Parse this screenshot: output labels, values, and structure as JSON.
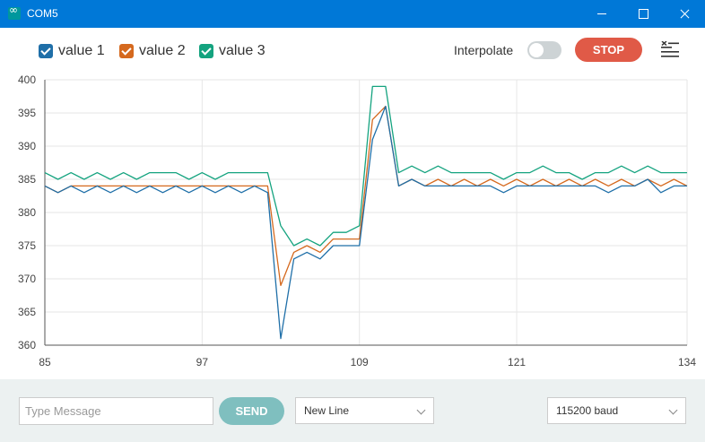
{
  "window": {
    "title": "COM5"
  },
  "legend": {
    "items": [
      {
        "label": "value 1",
        "color": "#1f6fa8"
      },
      {
        "label": "value 2",
        "color": "#d5691e"
      },
      {
        "label": "value 3",
        "color": "#14a37f"
      }
    ]
  },
  "controls": {
    "interpolate_label": "Interpolate",
    "interpolate_on": false,
    "stop_label": "STOP"
  },
  "bottom": {
    "message_placeholder": "Type Message",
    "send_label": "SEND",
    "line_ending": "New Line",
    "baud": "115200 baud"
  },
  "chart_data": {
    "type": "line",
    "xlim": [
      85,
      134
    ],
    "ylim": [
      360,
      400
    ],
    "x_ticks": [
      85,
      97,
      109,
      121,
      134
    ],
    "y_ticks": [
      360,
      365,
      370,
      375,
      380,
      385,
      390,
      395,
      400
    ],
    "grid": true,
    "x": [
      85,
      86,
      87,
      88,
      89,
      90,
      91,
      92,
      93,
      94,
      95,
      96,
      97,
      98,
      99,
      100,
      101,
      102,
      103,
      104,
      105,
      106,
      107,
      108,
      109,
      110,
      111,
      112,
      113,
      114,
      115,
      116,
      117,
      118,
      119,
      120,
      121,
      122,
      123,
      124,
      125,
      126,
      127,
      128,
      129,
      130,
      131,
      132,
      133,
      134
    ],
    "series": [
      {
        "name": "value 1",
        "color": "#1f6fa8",
        "values": [
          384,
          383,
          384,
          383,
          384,
          383,
          384,
          383,
          384,
          383,
          384,
          383,
          384,
          383,
          384,
          383,
          384,
          383,
          361,
          373,
          374,
          373,
          375,
          375,
          375,
          391,
          396,
          384,
          385,
          384,
          384,
          384,
          384,
          384,
          384,
          383,
          384,
          384,
          384,
          384,
          384,
          384,
          384,
          383,
          384,
          384,
          385,
          383,
          384,
          384
        ]
      },
      {
        "name": "value 2",
        "color": "#d5691e",
        "values": [
          384,
          383,
          384,
          384,
          384,
          384,
          384,
          384,
          384,
          384,
          384,
          384,
          384,
          384,
          384,
          384,
          384,
          384,
          369,
          374,
          375,
          374,
          376,
          376,
          376,
          394,
          396,
          384,
          385,
          384,
          385,
          384,
          385,
          384,
          385,
          384,
          385,
          384,
          385,
          384,
          385,
          384,
          385,
          384,
          385,
          384,
          385,
          384,
          385,
          384
        ]
      },
      {
        "name": "value 3",
        "color": "#14a37f",
        "values": [
          386,
          385,
          386,
          385,
          386,
          385,
          386,
          385,
          386,
          386,
          386,
          385,
          386,
          385,
          386,
          386,
          386,
          386,
          378,
          375,
          376,
          375,
          377,
          377,
          378,
          399,
          399,
          386,
          387,
          386,
          387,
          386,
          386,
          386,
          386,
          385,
          386,
          386,
          387,
          386,
          386,
          385,
          386,
          386,
          387,
          386,
          387,
          386,
          386,
          386
        ]
      }
    ]
  }
}
